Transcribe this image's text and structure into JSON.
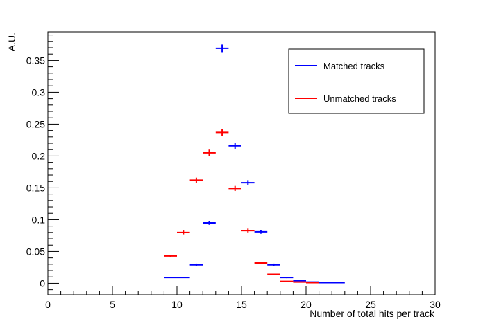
{
  "chart_data": {
    "type": "scatter",
    "title": "",
    "xlabel": "Number of total hits per track",
    "ylabel": "A.U.",
    "xlim": [
      0,
      30
    ],
    "ylim": [
      -0.018,
      0.395
    ],
    "x_ticks": [
      0,
      5,
      10,
      15,
      20,
      25,
      30
    ],
    "x_tick_labels": [
      "0",
      "5",
      "10",
      "15",
      "20",
      "25",
      "30"
    ],
    "y_ticks": [
      0,
      0.05,
      0.1,
      0.15,
      0.2,
      0.25,
      0.3,
      0.35
    ],
    "y_tick_labels": [
      "0",
      "0.05",
      "0.1",
      "0.15",
      "0.2",
      "0.25",
      "0.3",
      "0.35"
    ],
    "grid": false,
    "legend_position": "top-right",
    "series": [
      {
        "name": "Matched tracks",
        "color": "#0000ff",
        "points": [
          {
            "xlo": 9.0,
            "xhi": 11.0,
            "y": 0.009,
            "err": 0.0
          },
          {
            "xlo": 11.0,
            "xhi": 12.0,
            "y": 0.029,
            "err": 0.002
          },
          {
            "xlo": 12.0,
            "xhi": 13.0,
            "y": 0.095,
            "err": 0.003
          },
          {
            "xlo": 13.0,
            "xhi": 14.0,
            "y": 0.369,
            "err": 0.006
          },
          {
            "xlo": 14.0,
            "xhi": 15.0,
            "y": 0.216,
            "err": 0.005
          },
          {
            "xlo": 15.0,
            "xhi": 16.0,
            "y": 0.158,
            "err": 0.004
          },
          {
            "xlo": 16.0,
            "xhi": 17.0,
            "y": 0.081,
            "err": 0.003
          },
          {
            "xlo": 17.0,
            "xhi": 18.0,
            "y": 0.029,
            "err": 0.002
          },
          {
            "xlo": 18.0,
            "xhi": 19.0,
            "y": 0.009,
            "err": 0.001
          },
          {
            "xlo": 19.0,
            "xhi": 20.0,
            "y": 0.004,
            "err": 0.0
          },
          {
            "xlo": 20.0,
            "xhi": 21.0,
            "y": 0.002,
            "err": 0.0
          },
          {
            "xlo": 21.0,
            "xhi": 23.0,
            "y": 0.001,
            "err": 0.0
          }
        ]
      },
      {
        "name": "Unmatched tracks",
        "color": "#ff0000",
        "points": [
          {
            "xlo": 9.0,
            "xhi": 10.0,
            "y": 0.043,
            "err": 0.002
          },
          {
            "xlo": 10.0,
            "xhi": 11.0,
            "y": 0.08,
            "err": 0.003
          },
          {
            "xlo": 11.0,
            "xhi": 12.0,
            "y": 0.162,
            "err": 0.004
          },
          {
            "xlo": 12.0,
            "xhi": 13.0,
            "y": 0.205,
            "err": 0.005
          },
          {
            "xlo": 13.0,
            "xhi": 14.0,
            "y": 0.237,
            "err": 0.005
          },
          {
            "xlo": 14.0,
            "xhi": 15.0,
            "y": 0.149,
            "err": 0.004
          },
          {
            "xlo": 15.0,
            "xhi": 16.0,
            "y": 0.083,
            "err": 0.003
          },
          {
            "xlo": 16.0,
            "xhi": 17.0,
            "y": 0.032,
            "err": 0.002
          },
          {
            "xlo": 17.0,
            "xhi": 18.0,
            "y": 0.014,
            "err": 0.001
          },
          {
            "xlo": 18.0,
            "xhi": 19.0,
            "y": 0.003,
            "err": 0.0
          },
          {
            "xlo": 19.0,
            "xhi": 20.0,
            "y": 0.002,
            "err": 0.0
          },
          {
            "xlo": 20.0,
            "xhi": 21.0,
            "y": 0.001,
            "err": 0.0
          }
        ]
      }
    ]
  }
}
